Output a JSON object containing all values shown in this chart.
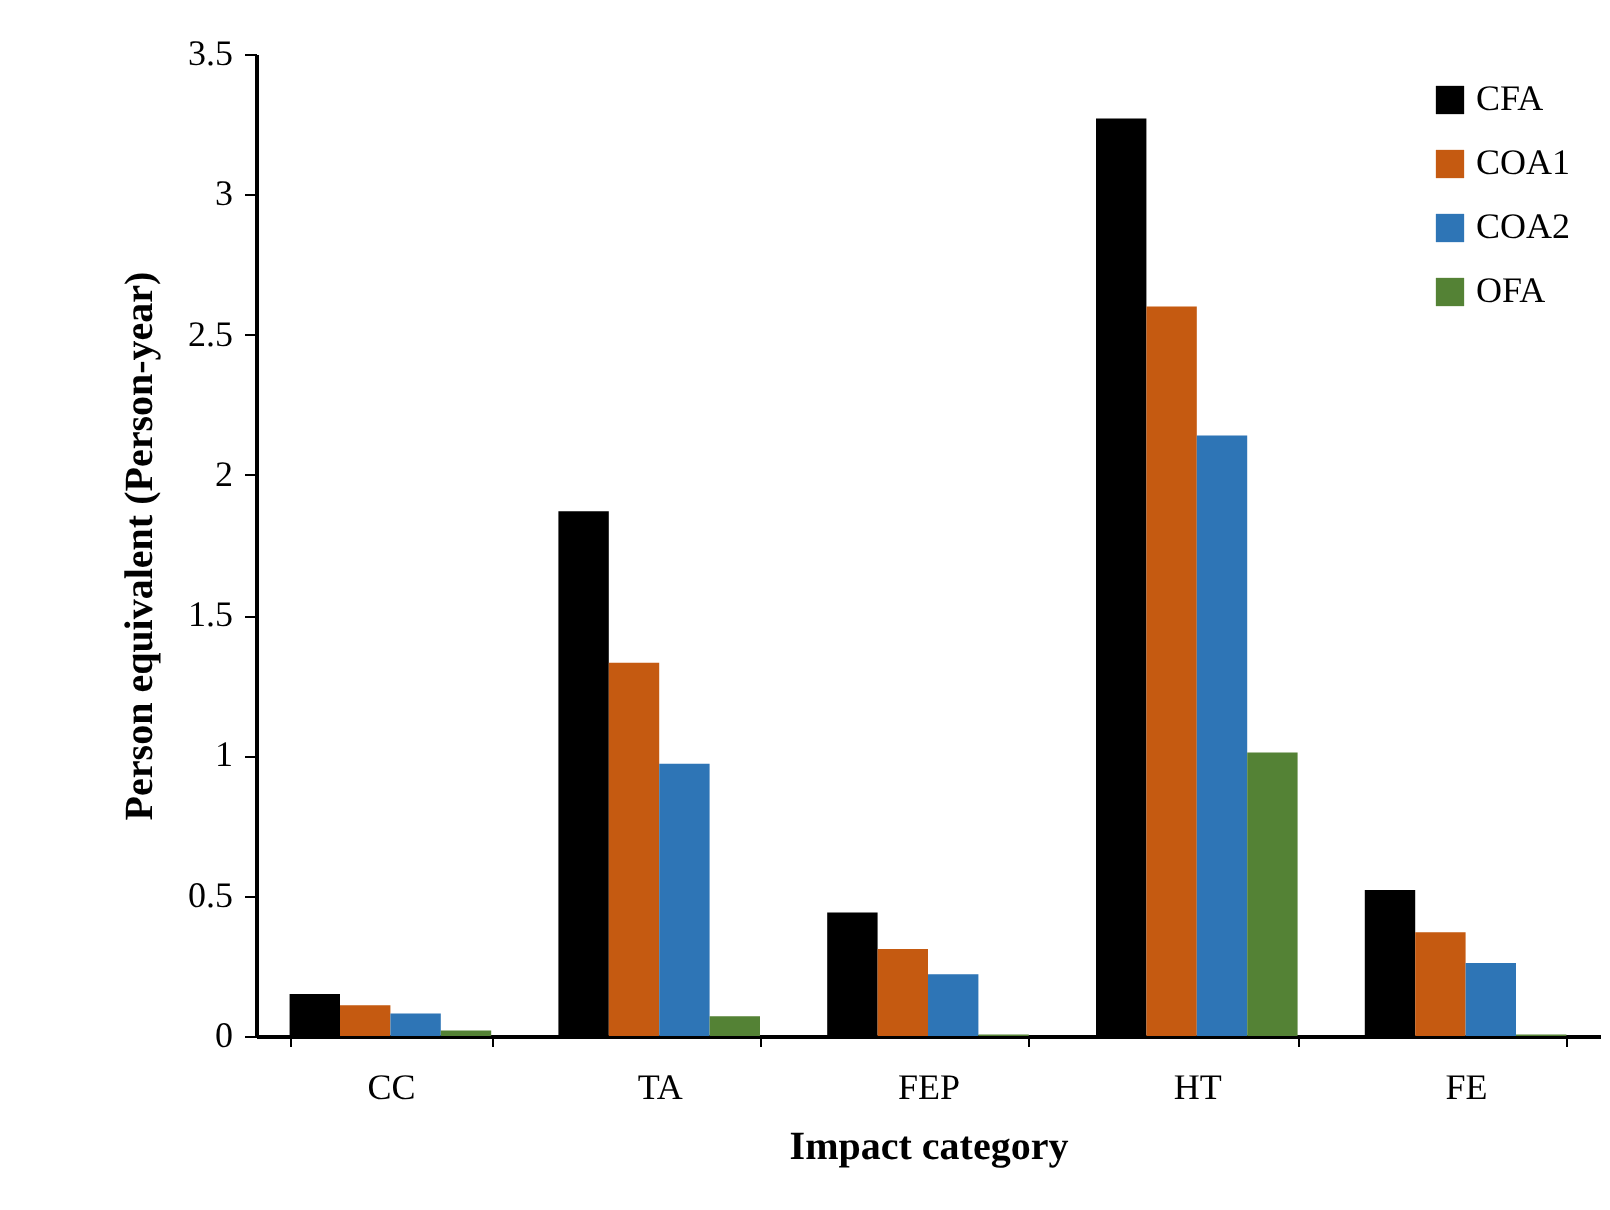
{
  "chart_data": {
    "type": "bar",
    "xlabel": "Impact category",
    "ylabel": "Person equivalent (Person-year)",
    "categories": [
      "CC",
      "TA",
      "FEP",
      "HT",
      "FE"
    ],
    "series": [
      {
        "name": "CFA",
        "color": "#000000",
        "values": [
          0.15,
          1.87,
          0.44,
          3.27,
          0.52
        ]
      },
      {
        "name": "COA1",
        "color": "#c55a11",
        "values": [
          0.11,
          1.33,
          0.31,
          2.6,
          0.37
        ]
      },
      {
        "name": "COA2",
        "color": "#2e75b6",
        "values": [
          0.08,
          0.97,
          0.22,
          2.14,
          0.26
        ]
      },
      {
        "name": "OFA",
        "color": "#548235",
        "values": [
          0.02,
          0.07,
          0.005,
          1.01,
          0.005
        ]
      }
    ],
    "ylim": [
      0,
      3.5
    ],
    "yticks": [
      0,
      0.5,
      1,
      1.5,
      2,
      2.5,
      3,
      3.5
    ],
    "grid": false,
    "legend": "top right"
  }
}
